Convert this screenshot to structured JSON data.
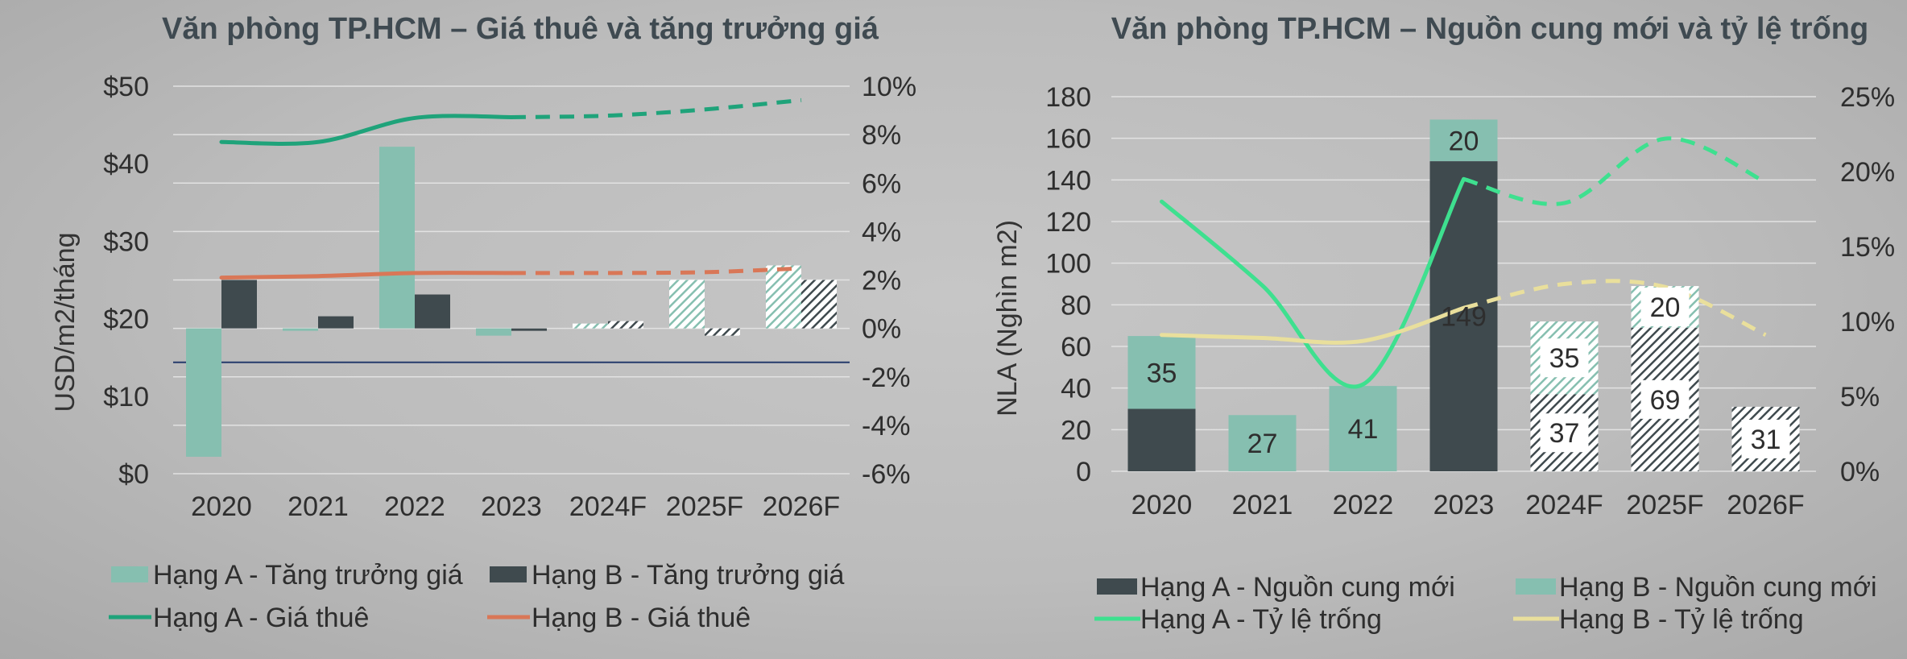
{
  "chart_data": [
    {
      "type": "bar",
      "title": "Văn phòng TP.HCM – Giá thuê và tăng trưởng giá",
      "categories": [
        "2020",
        "2021",
        "2022",
        "2023",
        "2024F",
        "2025F",
        "2026F"
      ],
      "ylabel": "USD/m2/tháng",
      "ylim": [
        0,
        50
      ],
      "y_ticks": [
        "$0",
        "$10",
        "$20",
        "$30",
        "$40",
        "$50"
      ],
      "y2lim": [
        -6,
        10
      ],
      "y2_ticks": [
        "-6%",
        "-4%",
        "-2%",
        "0%",
        "2%",
        "4%",
        "6%",
        "8%",
        "10%"
      ],
      "grid": true,
      "legend_position": "bottom",
      "forecast_from": "2024F",
      "series": [
        {
          "name": "Hạng A - Tăng trưởng giá",
          "kind": "bar",
          "axis": "right",
          "color": "#86bfb0",
          "values": [
            -5.3,
            -0.1,
            7.5,
            -0.3,
            0.2,
            2.0,
            2.6
          ]
        },
        {
          "name": "Hạng B - Tăng trưởng giá",
          "kind": "bar",
          "axis": "right",
          "color": "#3f4a4e",
          "values": [
            2.0,
            0.5,
            1.4,
            -0.1,
            0.3,
            -0.3,
            2.0
          ]
        },
        {
          "name": "Hạng A - Giá thuê",
          "kind": "line",
          "axis": "left",
          "color": "#1fa37a",
          "values": [
            42.8,
            42.8,
            45.9,
            46.0,
            46.2,
            47.0,
            48.2
          ]
        },
        {
          "name": "Hạng B - Giá thuê",
          "kind": "line",
          "axis": "left",
          "color": "#d97757",
          "values": [
            25.3,
            25.5,
            25.9,
            25.9,
            25.9,
            26.0,
            26.5
          ]
        }
      ]
    },
    {
      "type": "bar",
      "title": "Văn phòng TP.HCM – Nguồn cung mới và tỷ lệ trống",
      "categories": [
        "2020",
        "2021",
        "2022",
        "2023",
        "2024F",
        "2025F",
        "2026F"
      ],
      "ylabel": "NLA (Nghìn m2)",
      "ylim": [
        0,
        180
      ],
      "y_ticks": [
        "0",
        "20",
        "40",
        "60",
        "80",
        "100",
        "120",
        "140",
        "160",
        "180"
      ],
      "y2lim": [
        0,
        25
      ],
      "y2_ticks": [
        "0%",
        "5%",
        "10%",
        "15%",
        "20%",
        "25%"
      ],
      "grid": true,
      "legend_position": "bottom",
      "forecast_from": "2024F",
      "series": [
        {
          "name": "Hạng A - Nguồn cung mới",
          "kind": "stacked-bar",
          "axis": "left",
          "color": "#3f4a4e",
          "values": [
            30,
            0,
            0,
            149,
            37,
            69,
            31
          ],
          "labels": [
            "",
            "",
            "",
            "149",
            "37",
            "69",
            "31"
          ]
        },
        {
          "name": "Hạng B - Nguồn cung mới",
          "kind": "stacked-bar",
          "axis": "left",
          "color": "#86bfb0",
          "values": [
            35,
            27,
            41,
            20,
            35,
            20,
            0
          ],
          "labels": [
            "35",
            "27",
            "41",
            "20",
            "35",
            "20",
            ""
          ]
        },
        {
          "name": "Hạng A - Tỷ lệ trống",
          "kind": "line",
          "axis": "right",
          "color": "#3ee08f",
          "values": [
            18.0,
            12.4,
            5.8,
            19.5,
            17.9,
            22.2,
            19.3
          ]
        },
        {
          "name": "Hạng B - Tỷ lệ trống",
          "kind": "line",
          "axis": "right",
          "color": "#e9df9c",
          "values": [
            9.1,
            8.9,
            8.7,
            10.9,
            12.5,
            12.3,
            9.1
          ]
        }
      ]
    }
  ]
}
